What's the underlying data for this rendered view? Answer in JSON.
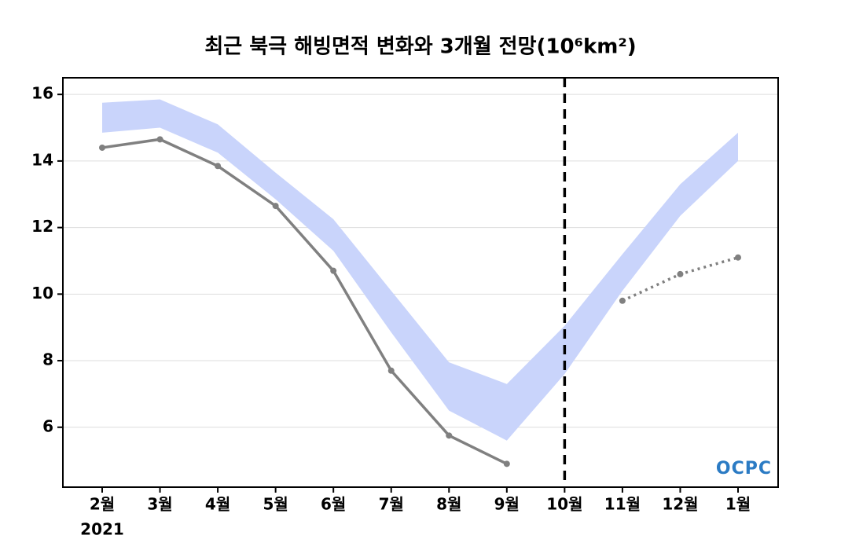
{
  "chart_data": {
    "type": "line",
    "title": "최근 북극 해빙면적 변화와 3개월 전망(10⁶km²)",
    "categories": [
      "2월",
      "3월",
      "4월",
      "5월",
      "6월",
      "7월",
      "8월",
      "9월",
      "10월",
      "11월",
      "12월",
      "1월"
    ],
    "year_label": "2021",
    "series": [
      {
        "color": "#808080",
        "style": "solid",
        "values": [
          14.4,
          14.65,
          13.85,
          12.65,
          10.7,
          7.7,
          5.75,
          4.9,
          null,
          null,
          null,
          null
        ]
      },
      {
        "color": "#808080",
        "style": "dotted",
        "values": [
          null,
          null,
          null,
          null,
          null,
          null,
          null,
          null,
          null,
          9.8,
          10.6,
          11.1
        ]
      }
    ],
    "band": {
      "color": "#c9d4fb",
      "lower": [
        14.85,
        15.0,
        14.25,
        12.85,
        11.3,
        8.85,
        6.5,
        5.6,
        7.6,
        10.1,
        12.35,
        14.0
      ],
      "upper": [
        15.75,
        15.85,
        15.1,
        13.65,
        12.25,
        10.1,
        7.95,
        7.3,
        9.05,
        11.2,
        13.3,
        14.85
      ]
    },
    "divider_at": "10월",
    "logo": "OCPC",
    "ylim": [
      4.2,
      16.5
    ],
    "yticks": [
      6,
      8,
      10,
      12,
      14,
      16
    ],
    "grid": true
  }
}
